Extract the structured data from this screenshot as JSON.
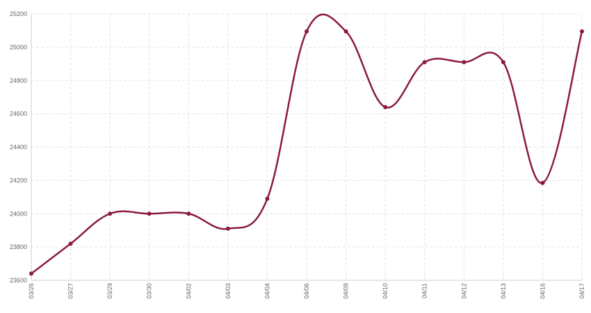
{
  "chart_data": {
    "type": "line",
    "categories": [
      "03/26",
      "03/27",
      "03/29",
      "03/30",
      "04/02",
      "04/03",
      "04/04",
      "04/06",
      "04/09",
      "04/10",
      "04/11",
      "04/12",
      "04/13",
      "04/16",
      "04/17"
    ],
    "series": [
      {
        "color": "#8b1a40",
        "values": [
          23640,
          23820,
          24000,
          24000,
          24000,
          23910,
          24090,
          25095,
          25095,
          24640,
          24910,
          24910,
          24910,
          24185,
          25095
        ]
      }
    ],
    "ylim": [
      23600,
      25200
    ],
    "yticks": [
      23600,
      23800,
      24000,
      24200,
      24400,
      24600,
      24800,
      25000,
      25200
    ],
    "grid": true
  }
}
